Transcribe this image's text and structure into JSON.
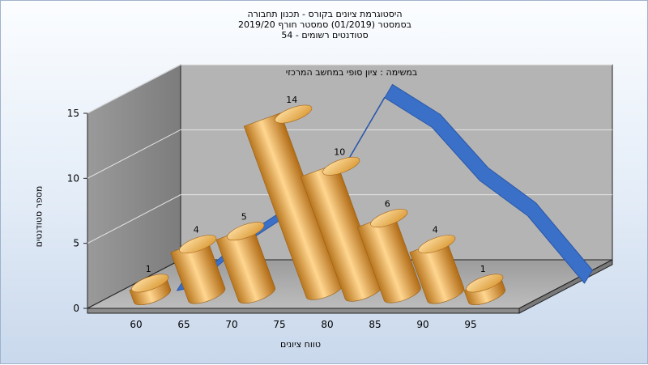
{
  "chart_data": {
    "type": "bar",
    "title_lines": [
      "היסטוגרמת ציונים בקורס - תכנון תחבורה",
      "בסמסטר  (01/2019)  סמסטר חורף  2019/20",
      "סטודנטים רשומים - 54"
    ],
    "annotation": "במשימה : ציון סופי במחשב המרכזי",
    "xlabel": "טווח ציונים",
    "ylabel": "מספר סטודנטים",
    "categories": [
      "60",
      "65",
      "70",
      "75",
      "80",
      "85",
      "90",
      "95"
    ],
    "values": [
      1,
      4,
      5,
      14,
      10,
      6,
      4,
      1
    ],
    "curve_values": [
      0,
      3.2,
      5.6,
      8.3,
      14.6,
      12.3,
      8.2,
      5.5
    ],
    "yticks": [
      0,
      5,
      10,
      15
    ],
    "ylim": [
      0,
      15
    ],
    "colors": {
      "bar": "#e0a040",
      "curve": "#3a70c8"
    }
  }
}
